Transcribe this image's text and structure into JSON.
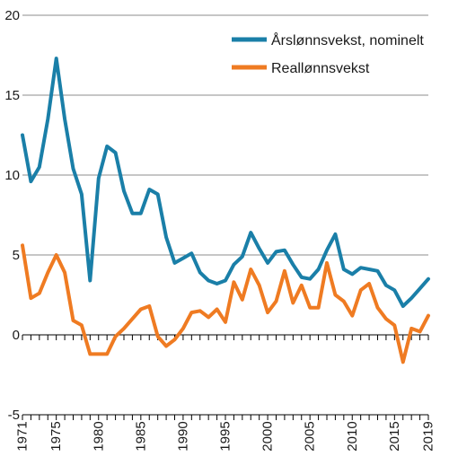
{
  "chart_data": {
    "type": "line",
    "title": "",
    "xlabel": "",
    "ylabel": "",
    "xlim": [
      1971,
      2019
    ],
    "ylim": [
      -5,
      20
    ],
    "grid": "horizontal",
    "legend_position": "top-right",
    "y_ticks": [
      -5,
      0,
      5,
      10,
      15,
      20
    ],
    "y_tick_labels": [
      "-5",
      "0",
      "5",
      "10",
      "15",
      "20"
    ],
    "x_ticks": [
      1971,
      1975,
      1980,
      1985,
      1990,
      1995,
      2000,
      2005,
      2010,
      2015,
      2019
    ],
    "x_tick_labels": [
      "1971",
      "1975",
      "1980",
      "1985",
      "1990",
      "1995",
      "2000",
      "2005",
      "2010",
      "2015",
      "2019"
    ],
    "x": [
      1971,
      1972,
      1973,
      1974,
      1975,
      1976,
      1977,
      1978,
      1979,
      1980,
      1981,
      1982,
      1983,
      1984,
      1985,
      1986,
      1987,
      1988,
      1989,
      1990,
      1991,
      1992,
      1993,
      1994,
      1995,
      1996,
      1997,
      1998,
      1999,
      2000,
      2001,
      2002,
      2003,
      2004,
      2005,
      2006,
      2007,
      2008,
      2009,
      2010,
      2011,
      2012,
      2013,
      2014,
      2015,
      2016,
      2017,
      2018,
      2019
    ],
    "series": [
      {
        "name": "Årslønnsvekst, nominelt",
        "color": "#1a7fa8",
        "values": [
          12.5,
          9.6,
          10.5,
          13.5,
          17.3,
          13.5,
          10.4,
          8.8,
          3.4,
          9.8,
          11.8,
          11.4,
          9.0,
          7.6,
          7.6,
          9.1,
          8.8,
          6.1,
          4.5,
          4.8,
          5.1,
          3.9,
          3.4,
          3.2,
          3.4,
          4.4,
          4.9,
          6.4,
          5.4,
          4.5,
          5.2,
          5.3,
          4.4,
          3.6,
          3.5,
          4.1,
          5.3,
          6.3,
          4.1,
          3.8,
          4.2,
          4.1,
          4.0,
          3.1,
          2.8,
          1.8,
          2.3,
          2.9,
          3.5
        ]
      },
      {
        "name": "Reallønnsvekst",
        "color": "#ef7b22",
        "values": [
          5.6,
          2.3,
          2.6,
          3.9,
          5.0,
          3.9,
          0.9,
          0.6,
          -1.2,
          -1.2,
          -1.2,
          -0.1,
          0.4,
          1.0,
          1.6,
          1.8,
          -0.1,
          -0.7,
          -0.3,
          0.4,
          1.4,
          1.5,
          1.1,
          1.6,
          0.8,
          3.3,
          2.2,
          4.1,
          3.1,
          1.4,
          2.1,
          4.0,
          2.0,
          3.1,
          1.7,
          1.7,
          4.5,
          2.5,
          2.1,
          1.2,
          2.8,
          3.2,
          1.7,
          1.0,
          0.6,
          -1.7,
          0.4,
          0.2,
          1.2
        ]
      }
    ]
  }
}
